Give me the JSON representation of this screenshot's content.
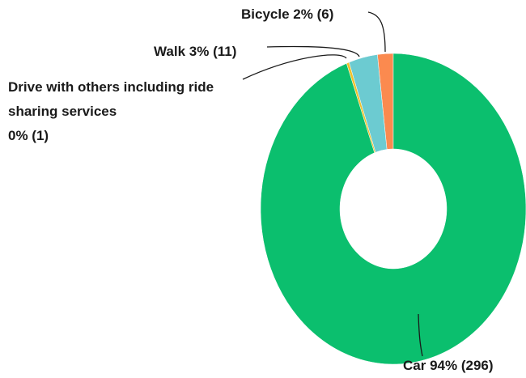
{
  "chart_data": {
    "type": "donut",
    "categories": [
      "Car",
      "Drive with others including ride sharing services",
      "Walk",
      "Bicycle"
    ],
    "values": [
      296,
      1,
      11,
      6
    ],
    "value_labels": [
      "94% (296)",
      "0% (1)",
      "3% (11)",
      "2% (6)"
    ],
    "colors": [
      "#0bbf6e",
      "#f0c12c",
      "#6ccbd1",
      "#fb8a4f"
    ]
  }
}
